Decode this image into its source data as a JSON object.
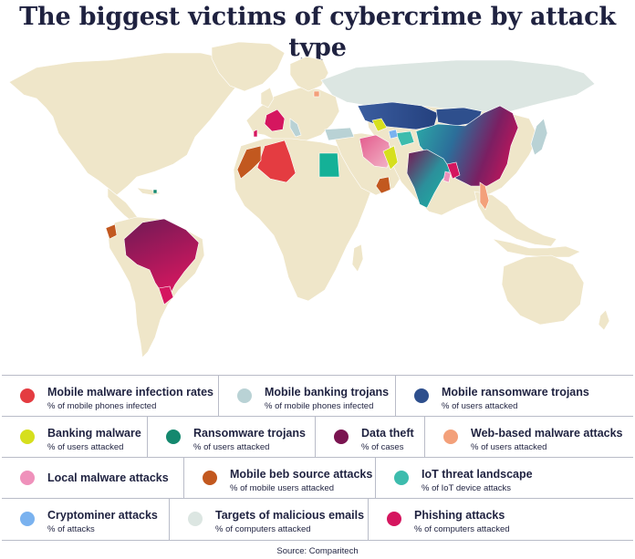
{
  "title": "The biggest victims of cybercrime by attack type",
  "source": "Source: Comparitech",
  "colors": {
    "land": "#efe6c9",
    "border": "#ffffff"
  },
  "legend": [
    {
      "label": "Mobile malware infection rates",
      "sub": "% of mobile phones infected",
      "color": "#e43c41"
    },
    {
      "label": "Mobile banking trojans",
      "sub": "% of mobile phones infected",
      "color": "#b9d2d5"
    },
    {
      "label": "Mobile ransomware trojans",
      "sub": "% of users attacked",
      "color": "#2e4f8d"
    },
    {
      "label": "Banking malware",
      "sub": "% of users attacked",
      "color": "#d6df1d"
    },
    {
      "label": "Ransomware trojans",
      "sub": "% of users attacked",
      "color": "#14886e"
    },
    {
      "label": "Data theft",
      "sub": "% of cases",
      "color": "#7a1450"
    },
    {
      "label": "Web-based malware attacks",
      "sub": "% of users attacked",
      "color": "#f3a07a"
    },
    {
      "label": "Local malware attacks",
      "sub": "",
      "color": "#ef91bb"
    },
    {
      "label": "Mobile beb source attacks",
      "sub": "% of mobile users attacked",
      "color": "#c2581f"
    },
    {
      "label": "IoT threat landscape",
      "sub": "% of IoT device attacks",
      "color": "#3dbcad"
    },
    {
      "label": "Cryptominer attacks",
      "sub": "% of attacks",
      "color": "#7ab2ef"
    },
    {
      "label": "Targets of malicious emails",
      "sub": "% of computers attacked",
      "color": "#dce6e2"
    },
    {
      "label": "Phishing attacks",
      "sub": "% of computers attacked",
      "color": "#d5165f"
    }
  ]
}
